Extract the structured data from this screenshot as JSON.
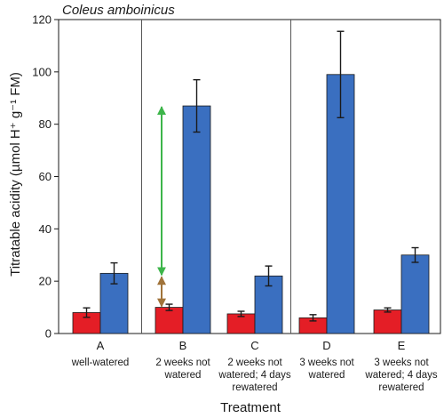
{
  "chart_data": {
    "type": "bar",
    "title": "Coleus amboinicus",
    "ylabel": "Titratable acidity (µmol H⁺ g⁻¹ FM)",
    "xlabel": "Treatment",
    "ylim": [
      0,
      120
    ],
    "yticks": [
      0,
      20,
      40,
      60,
      80,
      100,
      120
    ],
    "categories": [
      {
        "letter": "A",
        "desc": [
          "well-watered"
        ]
      },
      {
        "letter": "B",
        "desc": [
          "2 weeks not",
          "watered"
        ]
      },
      {
        "letter": "C",
        "desc": [
          "2 weeks not",
          "watered; 4 days",
          "rewatered"
        ]
      },
      {
        "letter": "D",
        "desc": [
          "3 weeks not",
          "watered"
        ]
      },
      {
        "letter": "E",
        "desc": [
          "3 weeks not",
          "watered; 4 days",
          "rewatered"
        ]
      }
    ],
    "series": [
      {
        "color": "#e41e26",
        "values": [
          8,
          10,
          7.5,
          6,
          9
        ],
        "errors": [
          1.8,
          1.2,
          1.0,
          1.2,
          0.8
        ]
      },
      {
        "color": "#3a6fc0",
        "values": [
          23,
          87,
          22,
          99,
          30
        ],
        "errors": [
          4,
          10,
          3.8,
          16.5,
          2.8
        ]
      }
    ],
    "dividers_after_category": [
      0,
      2
    ],
    "annotations": [
      {
        "category": "B",
        "color": "#3db54a",
        "from": 22,
        "to": 87
      },
      {
        "category": "B",
        "color": "#a0733a",
        "from": 10,
        "to": 22
      }
    ]
  }
}
